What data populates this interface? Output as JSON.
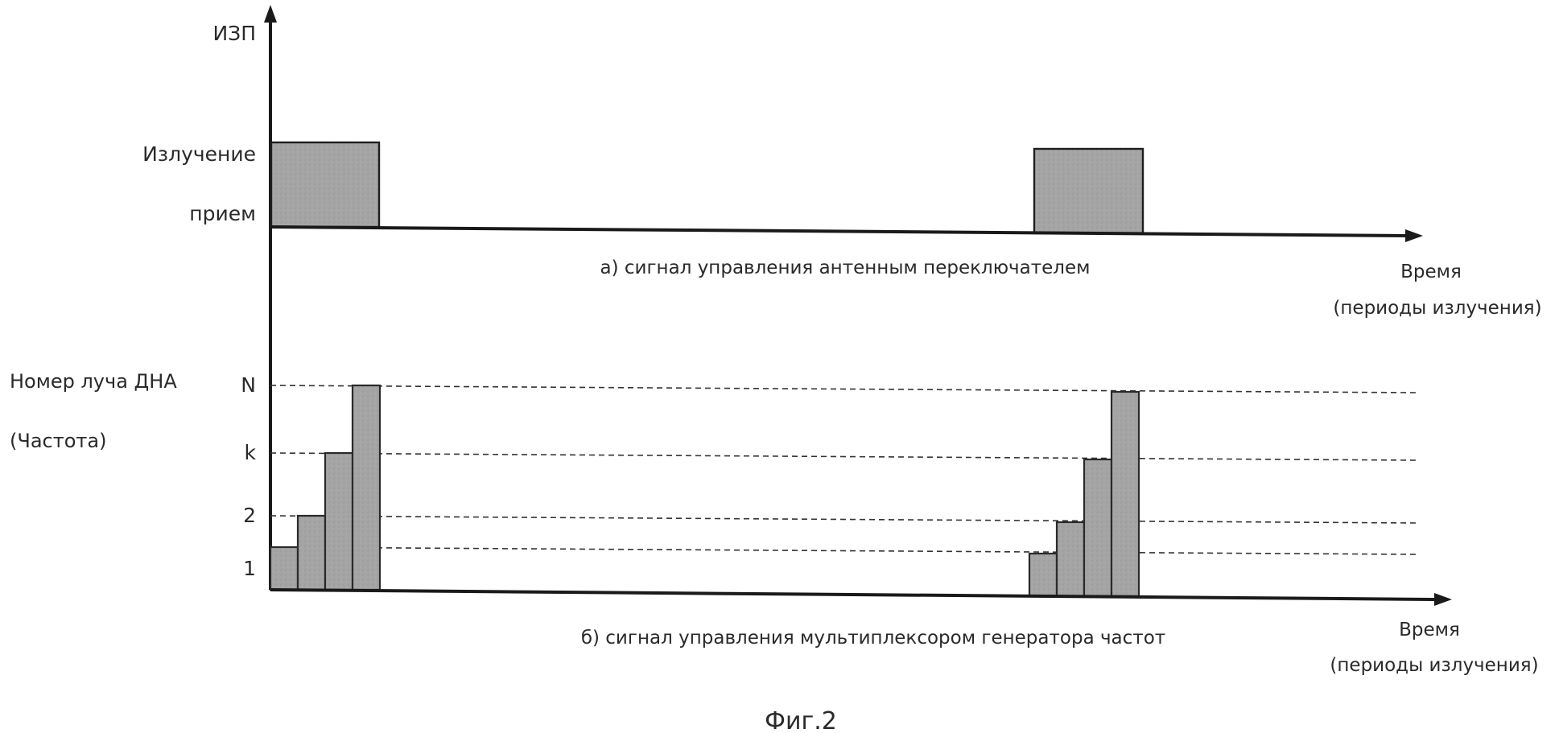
{
  "top_chart": {
    "y_axis_label": "ИЗП",
    "level_high_label": "Излучение",
    "level_low_label": "прием",
    "caption": "а) сигнал управления антенным переключателем",
    "x_axis_label_line1": "Время",
    "x_axis_label_line2": "(периоды излучения)"
  },
  "bottom_chart": {
    "y_title_line1": "Номер луча ДНА",
    "y_title_line2": "(Частота)",
    "levels": [
      {
        "label": "1",
        "value": 1
      },
      {
        "label": "2",
        "value": 2
      },
      {
        "label": "k",
        "value": 3
      },
      {
        "label": "N",
        "value": 4
      }
    ],
    "caption": "б) сигнал управления мультиплексором генератора частот",
    "x_axis_label_line1": "Время",
    "x_axis_label_line2": "(периоды излучения)"
  },
  "figure_label": "Фиг.2",
  "chart_data": [
    {
      "type": "step",
      "title": "а) сигнал управления антенным переключателем",
      "ylabel": "ИЗП",
      "xlabel": "Время (периоды излучения)",
      "y_states": [
        "прием",
        "Излучение"
      ],
      "pulses": [
        {
          "period": 1,
          "state": "Излучение"
        },
        {
          "period": 2,
          "state": "Излучение"
        }
      ]
    },
    {
      "type": "bar",
      "title": "б) сигнал управления мультиплексором генератора частот",
      "ylabel": "Номер луча ДНА (Частота)",
      "xlabel": "Время (периоды излучения)",
      "y_ticks": [
        "1",
        "2",
        "k",
        "N"
      ],
      "series": [
        {
          "period": 1,
          "values": [
            1,
            2,
            3,
            4
          ]
        },
        {
          "period": 2,
          "values": [
            1,
            2,
            3,
            4
          ]
        }
      ]
    }
  ]
}
